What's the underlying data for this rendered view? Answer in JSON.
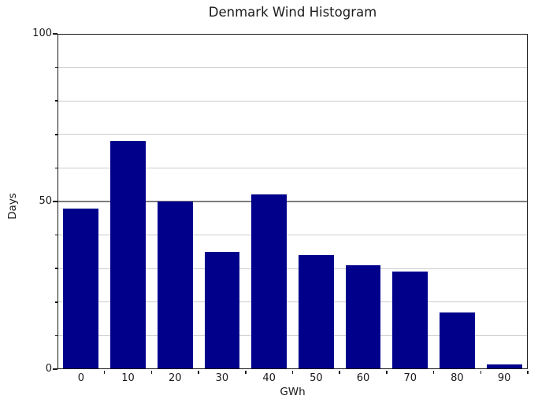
{
  "chart_data": {
    "type": "bar",
    "title": "Denmark Wind Histogram",
    "xlabel": "GWh",
    "ylabel": "Days",
    "categories": [
      0,
      10,
      20,
      30,
      40,
      50,
      60,
      70,
      80,
      90
    ],
    "values": [
      48,
      68,
      50,
      35,
      52,
      34,
      31,
      29,
      17,
      1.5
    ],
    "xlim": [
      -5,
      95
    ],
    "ylim": [
      0,
      100
    ],
    "yticks_major": [
      0,
      50,
      100
    ],
    "yticks_minor": [
      10,
      20,
      30,
      40,
      60,
      70,
      80,
      90
    ],
    "x_tick_edges": [
      5,
      15,
      25,
      35,
      45,
      55,
      65,
      75,
      85,
      95
    ],
    "bar_width_units": 7.5,
    "grid": "horizontal-every-10",
    "legend": "none",
    "bar_color": "#00008B",
    "minor_grid_color": "#cccccc",
    "major_grid_color": "#7d7d7d",
    "axis_color": "#1a1a1a"
  }
}
